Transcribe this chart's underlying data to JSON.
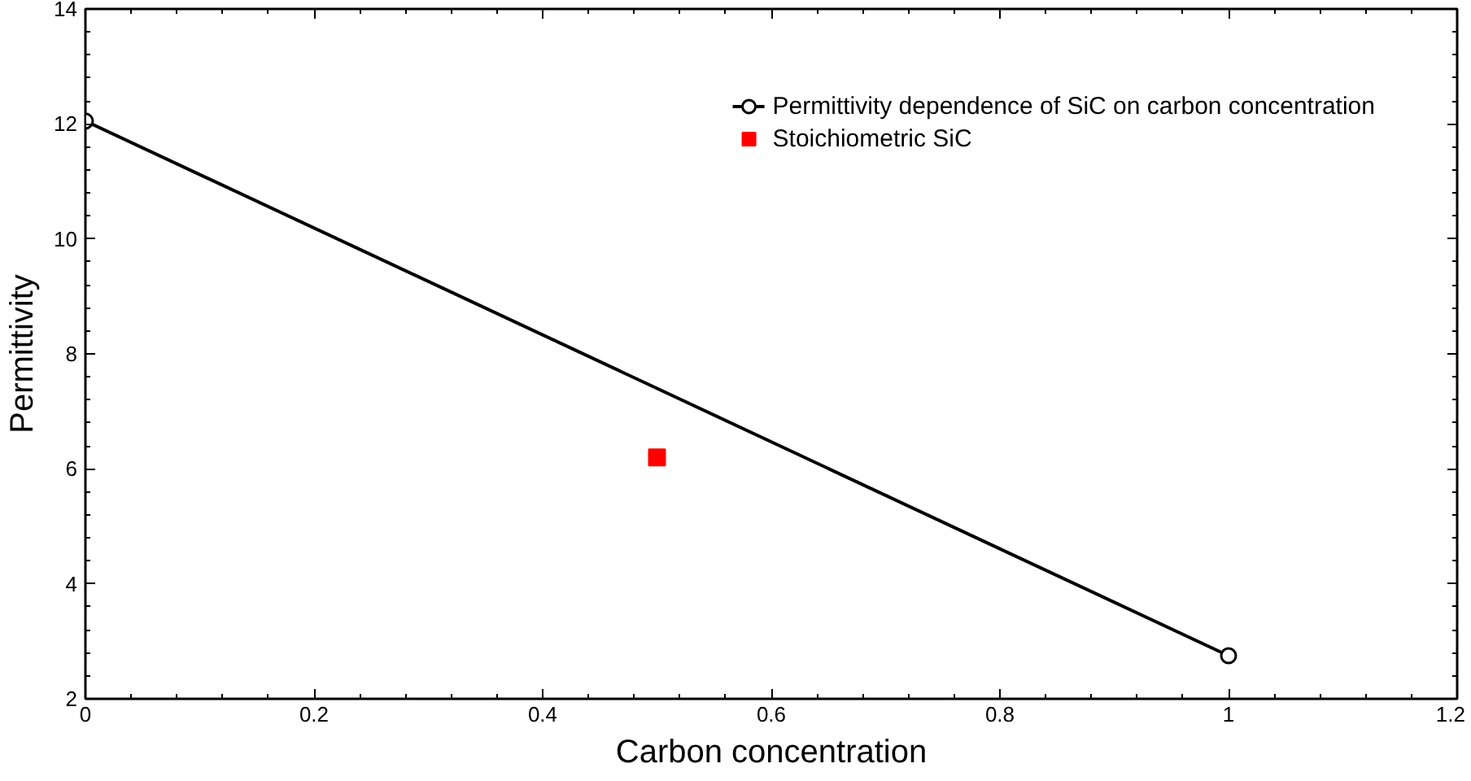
{
  "chart_data": {
    "type": "line",
    "xlabel": "Carbon concentration",
    "ylabel": "Permittivity",
    "xlim": [
      0,
      1.2
    ],
    "ylim": [
      2,
      14
    ],
    "xticks": [
      0,
      0.2,
      0.4,
      0.6,
      0.8,
      1,
      1.2
    ],
    "yticks": [
      2,
      4,
      6,
      8,
      10,
      12,
      14
    ],
    "grid": false,
    "legend": "top right",
    "series": [
      {
        "name": "Permittivity dependence of SiC on carbon concentration",
        "marker": "circle",
        "color": "#000000",
        "x": [
          0,
          1
        ],
        "values": [
          12.05,
          2.75
        ]
      },
      {
        "name": "Stoichiometric SiC",
        "type": "scatter",
        "marker": "square",
        "color": "#ff0000",
        "x": [
          0.5
        ],
        "values": [
          6.2
        ]
      }
    ]
  }
}
